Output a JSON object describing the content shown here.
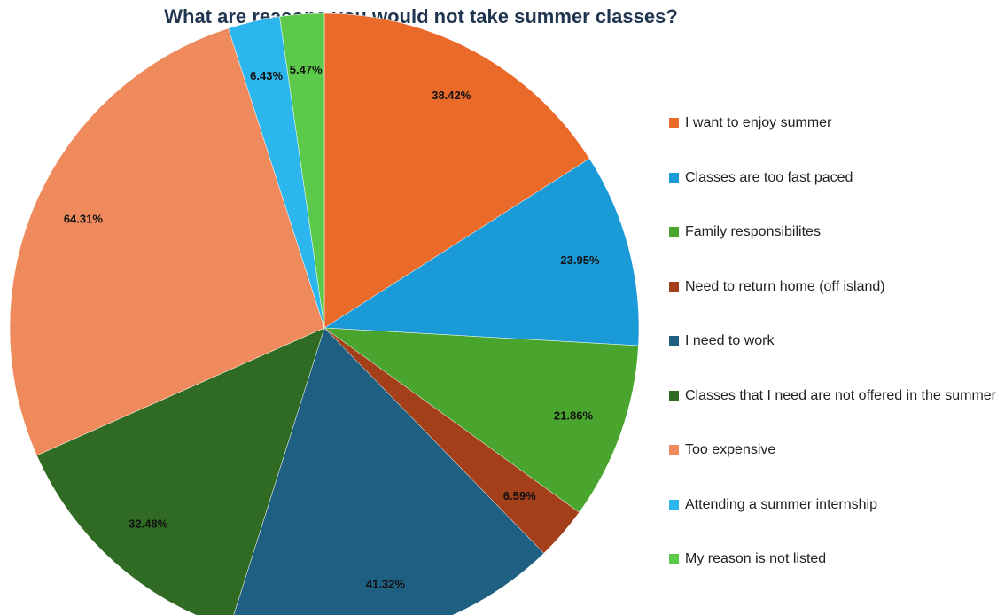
{
  "chart_data": {
    "type": "pie",
    "title": "What are reasons you would not take summer classes?",
    "categories": [
      "I want to enjoy summer",
      "Classes are too fast paced",
      "Family responsibilites",
      "Need to return home (off island)",
      "I need to work",
      "Classes that I need are not offered in the summer",
      "Too expensive",
      "Attending a summer internship",
      "My reason is not listed"
    ],
    "values": [
      38.42,
      23.95,
      21.86,
      6.59,
      41.32,
      32.48,
      64.31,
      6.43,
      5.47
    ],
    "value_labels": [
      "38.42%",
      "23.95%",
      "21.86%",
      "6.59%",
      "41.32%",
      "32.48%",
      "64.31%",
      "6.43%",
      "5.47%"
    ],
    "colors": [
      "#ea6a2a",
      "#1b9ad8",
      "#4aa52e",
      "#a3401a",
      "#1f5f82",
      "#2f6b22",
      "#ee8a5c",
      "#2cb6ee",
      "#5cc94a"
    ],
    "legend": "right"
  }
}
